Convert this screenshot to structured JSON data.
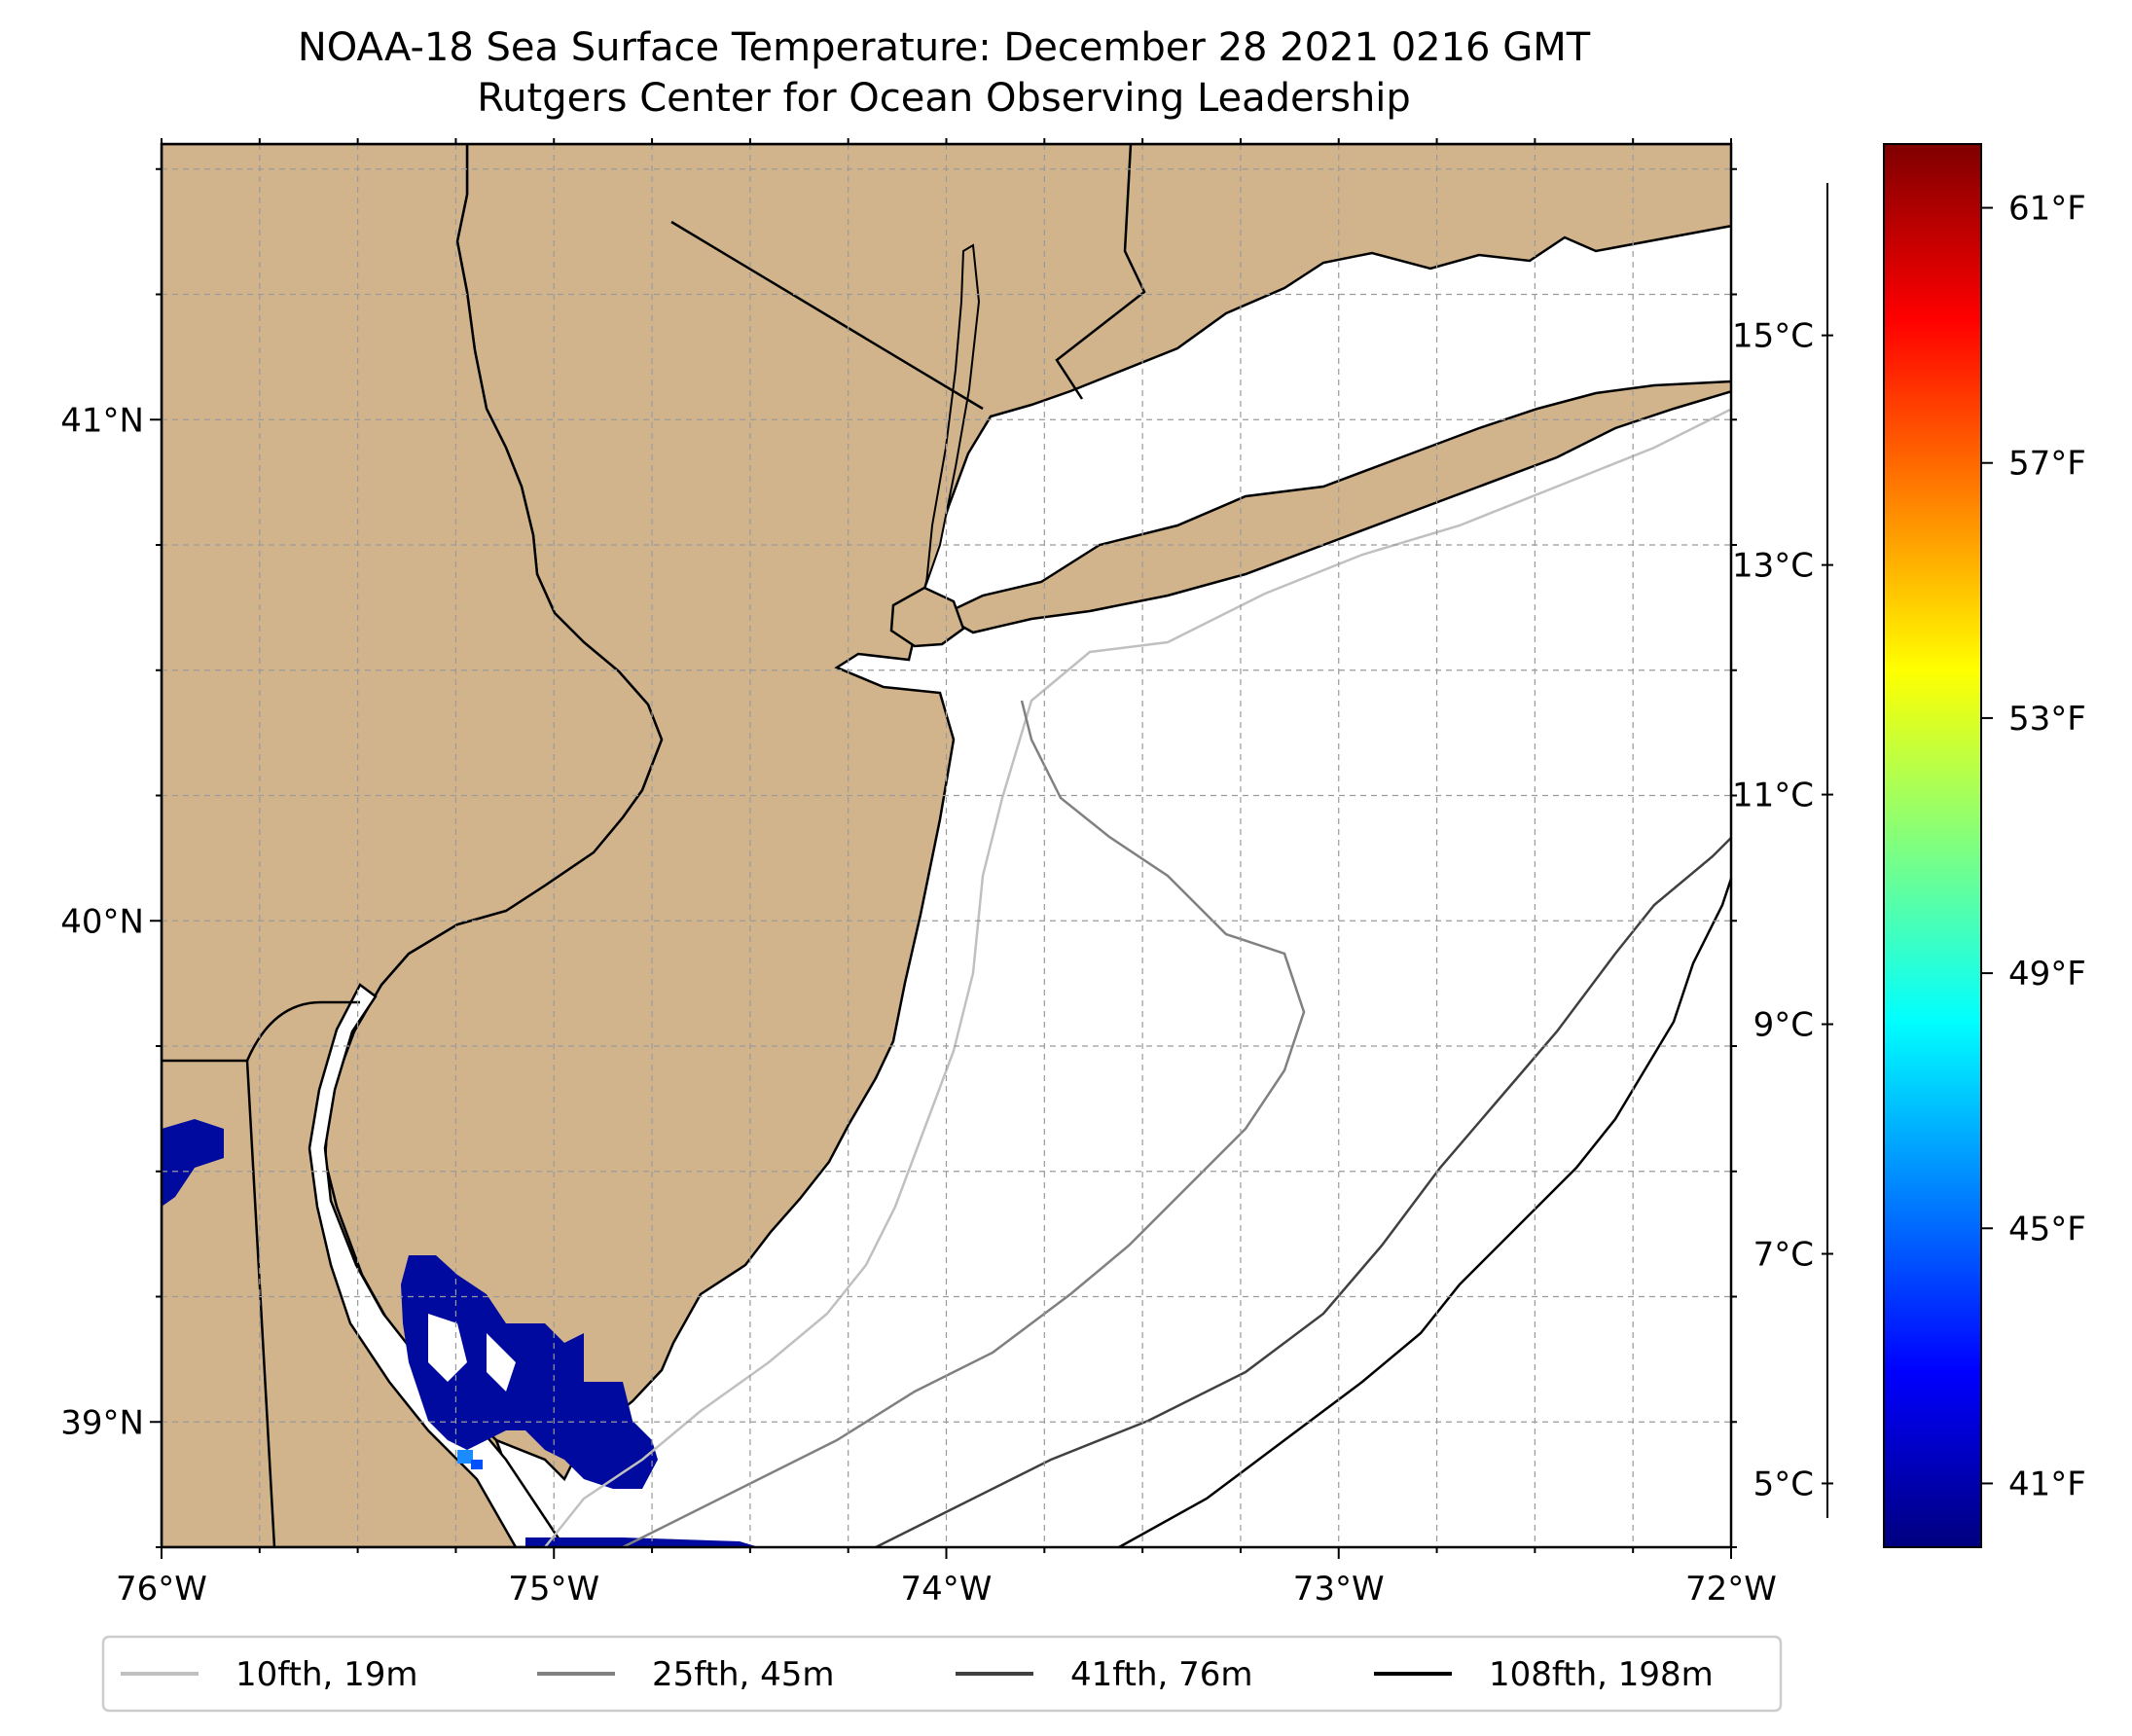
{
  "title": {
    "line1": "NOAA-18 Sea Surface Temperature: December 28 2021 0216 GMT",
    "line2": "Rutgers Center for Ocean Observing Leadership"
  },
  "map": {
    "type": "sea-surface-temperature-map",
    "lon_range": [
      -76,
      -72
    ],
    "lat_range": [
      38.75,
      41.55
    ],
    "x_ticks": [
      {
        "lon": -76,
        "label": "76°W"
      },
      {
        "lon": -75,
        "label": "75°W"
      },
      {
        "lon": -74,
        "label": "74°W"
      },
      {
        "lon": -73,
        "label": "73°W"
      },
      {
        "lon": -72,
        "label": "72°W"
      }
    ],
    "y_ticks": [
      {
        "lat": 41,
        "label": "41°N"
      },
      {
        "lat": 40,
        "label": "40°N"
      },
      {
        "lat": 39,
        "label": "39°N"
      }
    ],
    "grid": "dashed, every 0.25°",
    "colors": {
      "land": "#d2b48c",
      "ocean_nodata": "#ffffff",
      "coast": "#000000"
    }
  },
  "legend": {
    "placement": "bottom-center, below map",
    "items": [
      {
        "label": "10fth, 19m",
        "color": "#c0c0c0"
      },
      {
        "label": "25fth, 45m",
        "color": "#808080"
      },
      {
        "label": "41fth, 76m",
        "color": "#404040"
      },
      {
        "label": "108fth, 198m",
        "color": "#000000"
      }
    ]
  },
  "colorbar": {
    "colormap": "jet",
    "celsius_ticks": [
      {
        "value": 5,
        "label": "5°C"
      },
      {
        "value": 7,
        "label": "7°C"
      },
      {
        "value": 9,
        "label": "9°C"
      },
      {
        "value": 11,
        "label": "11°C"
      },
      {
        "value": 13,
        "label": "13°C"
      },
      {
        "value": 15,
        "label": "15°C"
      }
    ],
    "fahrenheit_ticks": [
      {
        "value": 41,
        "label": "41°F"
      },
      {
        "value": 45,
        "label": "45°F"
      },
      {
        "value": 49,
        "label": "49°F"
      },
      {
        "value": 53,
        "label": "53°F"
      },
      {
        "value": 57,
        "label": "57°F"
      },
      {
        "value": 61,
        "label": "61°F"
      }
    ],
    "range_f": [
      40,
      62
    ]
  }
}
